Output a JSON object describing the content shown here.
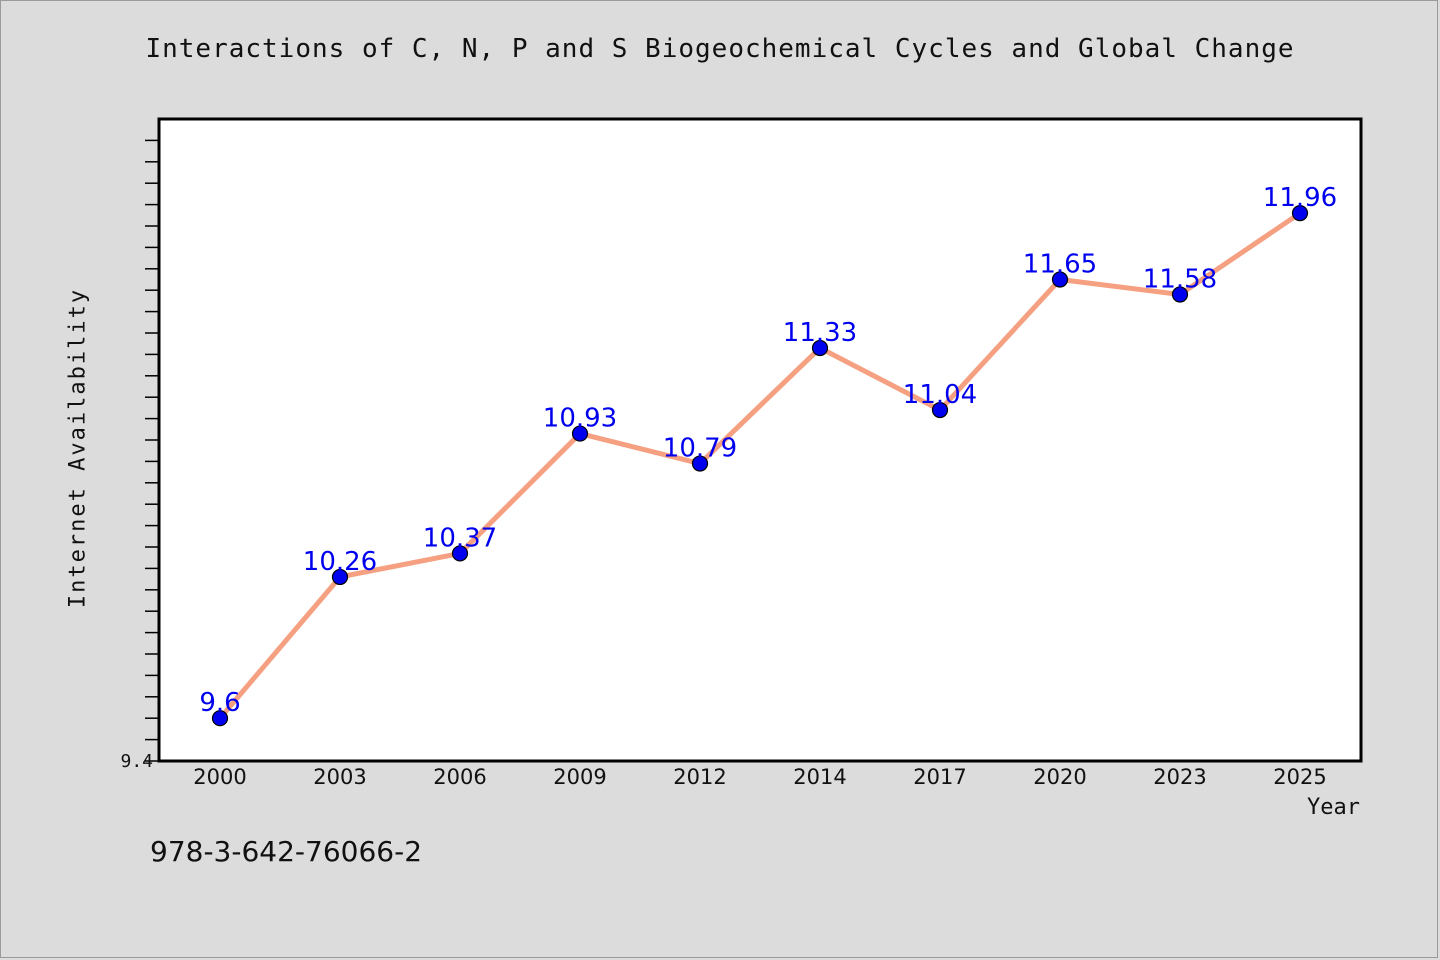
{
  "chart_data": {
    "type": "line",
    "title": "Interactions of C, N, P and S Biogeochemical Cycles and Global Change",
    "xlabel": "Year",
    "ylabel": "Internet Availability",
    "categories": [
      "2000",
      "2003",
      "2006",
      "2009",
      "2012",
      "2014",
      "2017",
      "2020",
      "2023",
      "2025"
    ],
    "values": [
      9.6,
      10.26,
      10.37,
      10.93,
      10.79,
      11.33,
      11.04,
      11.65,
      11.58,
      11.96
    ],
    "ytick_labels": [
      "9.4"
    ],
    "ylim": [
      9.4,
      12.4
    ],
    "grid": false,
    "legend": "none",
    "colors": {
      "line": "#f5a080",
      "marker": "#0000ee",
      "data_label": "#0000ee"
    }
  },
  "footer_text": "978-3-642-76066-2"
}
